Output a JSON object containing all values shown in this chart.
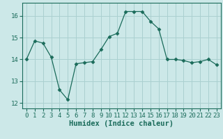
{
  "x": [
    0,
    1,
    2,
    3,
    4,
    5,
    6,
    7,
    8,
    9,
    10,
    11,
    12,
    13,
    14,
    15,
    16,
    17,
    18,
    19,
    20,
    21,
    22,
    23
  ],
  "y": [
    14.0,
    14.85,
    14.75,
    14.1,
    12.6,
    12.15,
    13.8,
    13.85,
    13.9,
    14.45,
    15.05,
    15.2,
    16.2,
    16.2,
    16.2,
    15.75,
    15.4,
    14.0,
    14.0,
    13.95,
    13.85,
    13.9,
    14.0,
    13.75
  ],
  "line_color": "#1a6b5a",
  "marker": "D",
  "marker_size": 2.5,
  "bg_color": "#cce8e8",
  "grid_color": "#aad0d0",
  "xlabel": "Humidex (Indice chaleur)",
  "xlim": [
    -0.5,
    23.5
  ],
  "ylim": [
    11.75,
    16.6
  ],
  "yticks": [
    12,
    13,
    14,
    15,
    16
  ],
  "xticks": [
    0,
    1,
    2,
    3,
    4,
    5,
    6,
    7,
    8,
    9,
    10,
    11,
    12,
    13,
    14,
    15,
    16,
    17,
    18,
    19,
    20,
    21,
    22,
    23
  ],
  "tick_color": "#1a6b5a",
  "label_color": "#1a6b5a",
  "xlabel_fontsize": 7.5,
  "tick_fontsize": 6.5
}
